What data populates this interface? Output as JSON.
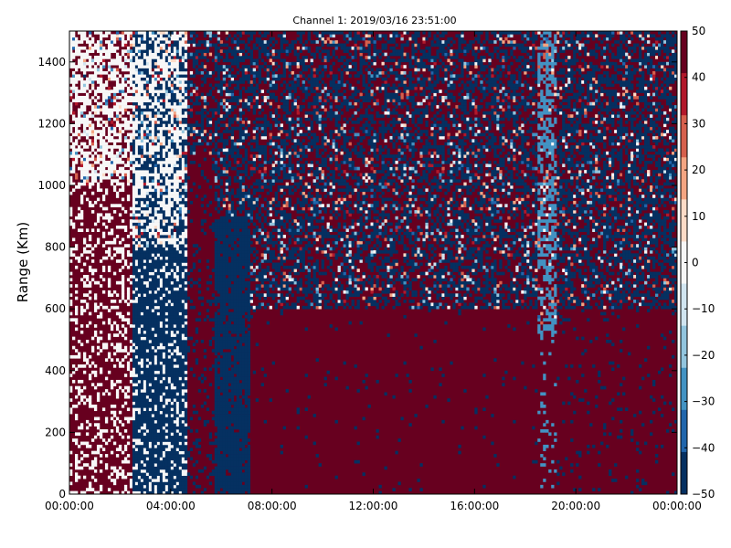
{
  "chart_data": {
    "type": "heatmap",
    "title": "Channel 1: 2019/03/16 23:51:00",
    "xlabel": "",
    "ylabel": "Range (Km)",
    "x_ticks": [
      "00:00:00",
      "04:00:00",
      "08:00:00",
      "12:00:00",
      "16:00:00",
      "20:00:00",
      "00:00:00"
    ],
    "xlim_hours": [
      0,
      24
    ],
    "y_ticks": [
      "0",
      "200",
      "400",
      "600",
      "800",
      "1000",
      "1200",
      "1400"
    ],
    "ylim": [
      0,
      1500
    ],
    "colorbar": {
      "ticks": [
        "50",
        "40",
        "30",
        "20",
        "10",
        "0",
        "−10",
        "−20",
        "−30",
        "−40",
        "−50"
      ],
      "range": [
        -50,
        50
      ],
      "colormap": "RdBu_r",
      "colors": [
        "#053061",
        "#2166ac",
        "#4393c3",
        "#92c5de",
        "#d1e5f0",
        "#f7f7f7",
        "#fddbc7",
        "#f4a582",
        "#d6604d",
        "#b2182b",
        "#67001f"
      ]
    },
    "regions": [
      {
        "hours": [
          0.0,
          2.5
        ],
        "dominant": 50,
        "alt_value": 0,
        "alt_fraction_low": 0.25,
        "alt_fraction_high": 0.55,
        "mixed_above_km": 1000
      },
      {
        "hours": [
          2.5,
          4.7
        ],
        "dominant": -50,
        "alt_value": 0,
        "alt_fraction_low": 0.2,
        "alt_fraction_high": 0.5,
        "mixed_above_km": 800
      },
      {
        "hours": [
          4.7,
          5.7
        ],
        "dominant": 50,
        "alt_value": -50,
        "alt_fraction_low": 0.15,
        "alt_fraction_high": 0.35,
        "mixed_above_km": 1100
      },
      {
        "hours": [
          5.7,
          7.1
        ],
        "dominant": -50,
        "alt_value": 50,
        "alt_fraction_low": 0.1,
        "alt_fraction_high": 0.4,
        "mixed_above_km": 900
      },
      {
        "hours": [
          7.1,
          18.5
        ],
        "dominant": 50,
        "alt_value": -50,
        "alt_fraction_low": 0.02,
        "alt_fraction_high": 0.4,
        "mixed_above_km": 600
      },
      {
        "hours": [
          18.5,
          19.2
        ],
        "dominant": 50,
        "alt_value": -30,
        "alt_fraction_low": 0.12,
        "alt_fraction_high": 0.45,
        "mixed_above_km": 500
      },
      {
        "hours": [
          19.2,
          24.0
        ],
        "dominant": 50,
        "alt_value": -50,
        "alt_fraction_low": 0.06,
        "alt_fraction_high": 0.45,
        "mixed_above_km": 600
      }
    ]
  }
}
